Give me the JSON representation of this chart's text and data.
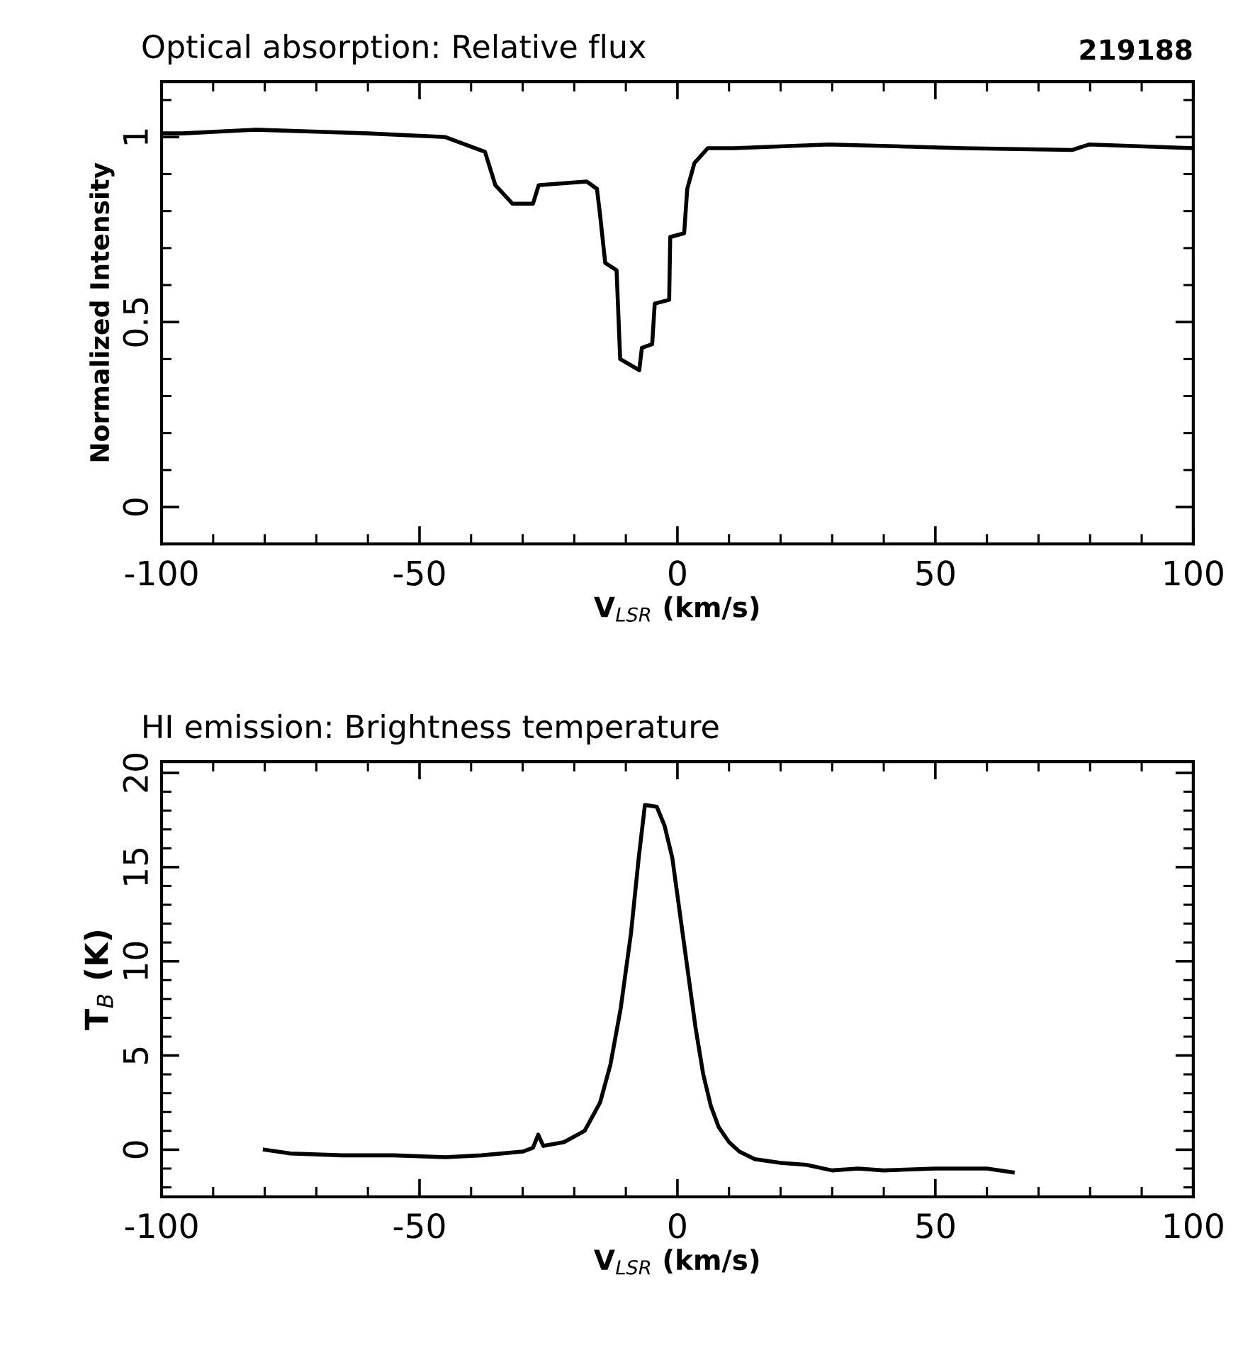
{
  "chart_data": [
    {
      "type": "line",
      "title": "Optical absorption: Relative flux",
      "annotations": [
        "219188"
      ],
      "xlabel": "V$_{LSR}$ (km/s)",
      "ylabel": "Normalized Intensity",
      "xlim": [
        -100,
        100
      ],
      "xticks": [
        -100,
        -50,
        0,
        50,
        100
      ],
      "ylim": [
        -0.1,
        1.15
      ],
      "yticks": [
        0,
        0.5,
        1
      ],
      "grid": false,
      "legend": false,
      "marker": "none",
      "line_style": "solid",
      "series": [
        {
          "color": "#000000",
          "x": [
            -100,
            -96,
            -82,
            -60,
            -45,
            -37.3,
            -35.3,
            -32,
            -28,
            -26.9,
            -17.6,
            -15.6,
            -15,
            -14,
            -11.8,
            -11.1,
            -7.4,
            -6.9,
            -4.9,
            -4.4,
            -1.6,
            -1.4,
            1.3,
            1.9,
            3.3,
            5.9,
            11,
            29.4,
            55.5,
            76.5,
            79.8,
            100
          ],
          "values": [
            1.01,
            1.01,
            1.02,
            1.01,
            1.0,
            0.96,
            0.87,
            0.82,
            0.82,
            0.87,
            0.88,
            0.86,
            0.79,
            0.66,
            0.64,
            0.4,
            0.37,
            0.43,
            0.44,
            0.55,
            0.56,
            0.73,
            0.74,
            0.86,
            0.93,
            0.97,
            0.97,
            0.98,
            0.97,
            0.965,
            0.98,
            0.97
          ]
        }
      ]
    },
    {
      "type": "line",
      "title": "HI emission: Brightness temperature",
      "xlabel": "V$_{LSR}$ (km/s)",
      "ylabel": "T$_{B}$ (K)",
      "xlim": [
        -100,
        100
      ],
      "xticks": [
        -100,
        -50,
        0,
        50,
        100
      ],
      "ylim": [
        -2.5,
        20.6
      ],
      "yticks": [
        0,
        5,
        10,
        15,
        20
      ],
      "grid": false,
      "legend": false,
      "marker": "none",
      "line_style": "solid",
      "series": [
        {
          "color": "#000000",
          "x": [
            -80,
            -75,
            -65,
            -55,
            -45,
            -38,
            -30,
            -28,
            -27,
            -26,
            -22,
            -18,
            -15,
            -13,
            -11,
            -9,
            -7.5,
            -6.3,
            -4,
            -2.5,
            -1,
            0.5,
            2,
            3.5,
            5,
            6.5,
            8,
            10,
            12,
            15,
            20,
            25,
            30,
            35,
            40,
            50,
            55,
            60,
            65
          ],
          "values": [
            0,
            -0.2,
            -0.3,
            -0.3,
            -0.4,
            -0.3,
            -0.1,
            0.1,
            0.8,
            0.2,
            0.4,
            1.0,
            2.5,
            4.5,
            7.5,
            11.5,
            15.5,
            18.3,
            18.2,
            17.2,
            15.5,
            12.5,
            9.5,
            6.5,
            4.0,
            2.3,
            1.2,
            0.4,
            -0.1,
            -0.5,
            -0.7,
            -0.8,
            -1.1,
            -1.0,
            -1.1,
            -1.0,
            -1.0,
            -1.0,
            -1.2
          ]
        }
      ]
    }
  ]
}
